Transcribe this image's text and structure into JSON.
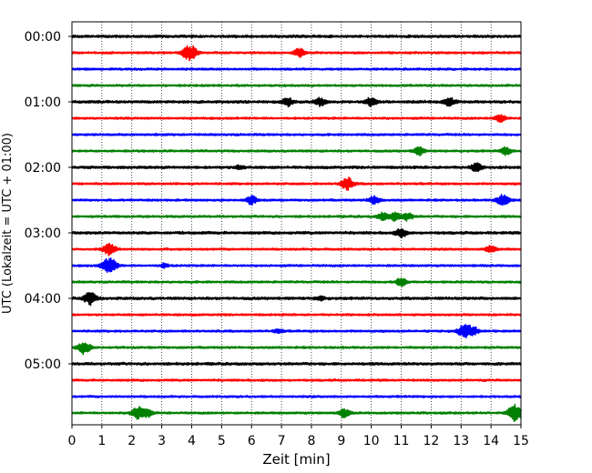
{
  "chart_data": {
    "type": "line",
    "title": "",
    "xlabel": "Zeit  [min]",
    "ylabel": "UTC (Lokalzeit = UTC + 01:00)",
    "xlim": [
      0,
      15
    ],
    "x_ticks": [
      "0",
      "1",
      "2",
      "3",
      "4",
      "5",
      "6",
      "7",
      "8",
      "9",
      "10",
      "11",
      "12",
      "13",
      "14",
      "15"
    ],
    "y_tick_labels": [
      "00:00",
      "01:00",
      "02:00",
      "03:00",
      "04:00",
      "05:00"
    ],
    "row_interval_minutes": 15,
    "row_count": 24,
    "row_colors": [
      "#000000",
      "#ff0000",
      "#0000ff",
      "#008000"
    ],
    "grid": {
      "vertical_dotted": true,
      "horizontal": false
    },
    "events": [
      {
        "row": 1,
        "minute": 4.0,
        "strength": 3
      },
      {
        "row": 1,
        "minute": 3.8,
        "strength": 2
      },
      {
        "row": 1,
        "minute": 7.6,
        "strength": 2
      },
      {
        "row": 4,
        "minute": 7.2,
        "strength": 2
      },
      {
        "row": 4,
        "minute": 8.3,
        "strength": 2
      },
      {
        "row": 4,
        "minute": 10.0,
        "strength": 2
      },
      {
        "row": 4,
        "minute": 12.6,
        "strength": 2
      },
      {
        "row": 5,
        "minute": 14.3,
        "strength": 2
      },
      {
        "row": 7,
        "minute": 11.6,
        "strength": 2
      },
      {
        "row": 7,
        "minute": 14.5,
        "strength": 2
      },
      {
        "row": 8,
        "minute": 13.5,
        "strength": 2
      },
      {
        "row": 8,
        "minute": 5.6,
        "strength": 1
      },
      {
        "row": 9,
        "minute": 9.2,
        "strength": 3
      },
      {
        "row": 10,
        "minute": 14.4,
        "strength": 3
      },
      {
        "row": 10,
        "minute": 10.1,
        "strength": 2
      },
      {
        "row": 10,
        "minute": 6.0,
        "strength": 2
      },
      {
        "row": 11,
        "minute": 10.4,
        "strength": 2
      },
      {
        "row": 11,
        "minute": 10.8,
        "strength": 2
      },
      {
        "row": 11,
        "minute": 11.2,
        "strength": 2
      },
      {
        "row": 12,
        "minute": 11.0,
        "strength": 2
      },
      {
        "row": 13,
        "minute": 1.25,
        "strength": 3
      },
      {
        "row": 13,
        "minute": 14.0,
        "strength": 2
      },
      {
        "row": 14,
        "minute": 1.25,
        "strength": 4
      },
      {
        "row": 14,
        "minute": 3.1,
        "strength": 1
      },
      {
        "row": 15,
        "minute": 11.0,
        "strength": 2
      },
      {
        "row": 16,
        "minute": 0.6,
        "strength": 3
      },
      {
        "row": 16,
        "minute": 8.3,
        "strength": 1
      },
      {
        "row": 18,
        "minute": 13.1,
        "strength": 3
      },
      {
        "row": 18,
        "minute": 13.4,
        "strength": 2
      },
      {
        "row": 18,
        "minute": 6.9,
        "strength": 1
      },
      {
        "row": 19,
        "minute": 0.4,
        "strength": 3
      },
      {
        "row": 23,
        "minute": 2.2,
        "strength": 3
      },
      {
        "row": 23,
        "minute": 2.5,
        "strength": 2
      },
      {
        "row": 23,
        "minute": 9.1,
        "strength": 2
      },
      {
        "row": 23,
        "minute": 14.8,
        "strength": 4
      }
    ]
  }
}
